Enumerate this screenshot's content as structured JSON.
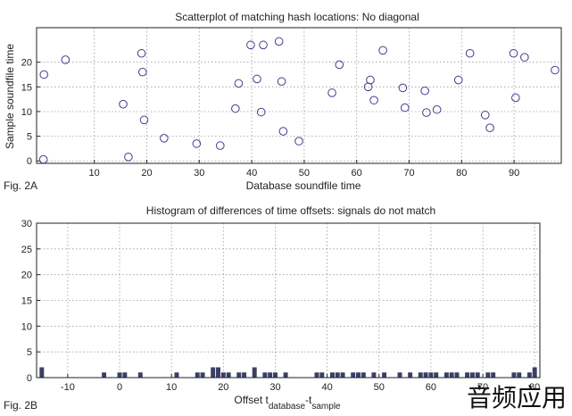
{
  "chart_data": [
    {
      "type": "scatter",
      "title": "Scatterplot of matching hash locations:  No diagonal",
      "xlabel": "Database soundfile time",
      "ylabel": "Sample soundfile time",
      "figure_label": "Fig. 2A",
      "xlim": [
        -1,
        99
      ],
      "ylim": [
        -0.5,
        27
      ],
      "xticks": [
        10,
        20,
        30,
        40,
        50,
        60,
        70,
        80,
        90
      ],
      "yticks": [
        0,
        5,
        10,
        15,
        20
      ],
      "grid": true,
      "points": [
        [
          0.3,
          0.3
        ],
        [
          0.4,
          17.5
        ],
        [
          4.5,
          20.5
        ],
        [
          15.5,
          11.5
        ],
        [
          16.5,
          0.8
        ],
        [
          19,
          21.8
        ],
        [
          19.2,
          18
        ],
        [
          19.5,
          8.3
        ],
        [
          23.3,
          4.6
        ],
        [
          29.5,
          3.5
        ],
        [
          34,
          3.1
        ],
        [
          36.9,
          10.6
        ],
        [
          37.5,
          15.7
        ],
        [
          39.8,
          23.5
        ],
        [
          41,
          16.6
        ],
        [
          41.8,
          9.9
        ],
        [
          42.2,
          23.5
        ],
        [
          45.2,
          24.2
        ],
        [
          45.7,
          16.1
        ],
        [
          46,
          6
        ],
        [
          49,
          4
        ],
        [
          55.3,
          13.8
        ],
        [
          56.7,
          19.5
        ],
        [
          62.2,
          15
        ],
        [
          62.6,
          16.4
        ],
        [
          63.3,
          12.3
        ],
        [
          65,
          22.4
        ],
        [
          68.8,
          14.8
        ],
        [
          69.2,
          10.8
        ],
        [
          73,
          14.2
        ],
        [
          73.3,
          9.8
        ],
        [
          75.3,
          10.4
        ],
        [
          79.4,
          16.4
        ],
        [
          81.6,
          21.8
        ],
        [
          84.5,
          9.3
        ],
        [
          85.4,
          6.7
        ],
        [
          89.9,
          21.8
        ],
        [
          90.3,
          12.8
        ],
        [
          92,
          21
        ],
        [
          97.8,
          18.4
        ]
      ]
    },
    {
      "type": "bar",
      "title": "Histogram of differences of time offsets: signals do not match",
      "xlabel": "Offset t",
      "xlabel_sub1": "database",
      "xlabel_dash": "-t",
      "xlabel_sub2": "sample",
      "figure_label": "Fig. 2B",
      "xlim": [
        -16,
        81
      ],
      "ylim": [
        0,
        30
      ],
      "xticks": [
        -10,
        0,
        10,
        20,
        30,
        40,
        50,
        60,
        70,
        80
      ],
      "yticks": [
        0,
        5,
        10,
        15,
        20,
        25,
        30
      ],
      "grid": true,
      "x": [
        -15,
        -3,
        0,
        1,
        4,
        11,
        15,
        16,
        18,
        19,
        20,
        21,
        23,
        24,
        26,
        28,
        29,
        30,
        32,
        38,
        39,
        41,
        42,
        43,
        45,
        46,
        47,
        49,
        51,
        54,
        56,
        58,
        59,
        60,
        61,
        63,
        64,
        65,
        67,
        68,
        69,
        71,
        72,
        76,
        77,
        79,
        80
      ],
      "values": [
        2,
        1,
        1,
        1,
        1,
        1,
        1,
        1,
        2,
        2,
        1,
        1,
        1,
        1,
        2,
        1,
        1,
        1,
        1,
        1,
        1,
        1,
        1,
        1,
        1,
        1,
        1,
        1,
        1,
        1,
        1,
        1,
        1,
        1,
        1,
        1,
        1,
        1,
        1,
        1,
        1,
        1,
        1,
        1,
        1,
        1,
        2
      ]
    }
  ],
  "watermark": "音频应用"
}
